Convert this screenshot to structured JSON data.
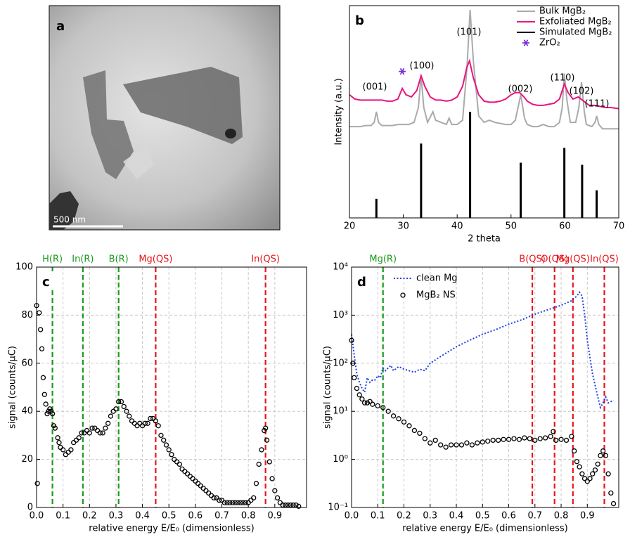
{
  "chart_data": [
    {
      "type": "image",
      "label": "a",
      "scale_label": "500 nm"
    },
    {
      "type": "line",
      "label": "b",
      "xlabel": "2 theta",
      "ylabel": "Intensity (a.u.)",
      "xlim": [
        20,
        70
      ],
      "xticks": [
        20,
        30,
        40,
        50,
        60,
        70
      ],
      "ylim": [
        0,
        100
      ],
      "grid": false,
      "legend": "upper right",
      "annotations": [
        "(001)",
        "(100)",
        "(101)",
        "(002)",
        "(110)",
        "(102)",
        "(111)"
      ],
      "series": [
        {
          "name": "Bulk MgB₂",
          "type": "line",
          "color": "#aaaaaa",
          "x": [
            20,
            21,
            22,
            23,
            24,
            24.6,
            25,
            25.4,
            26,
            27,
            28,
            29,
            30,
            31,
            32,
            32.8,
            33.3,
            33.8,
            34.5,
            35.5,
            36,
            37,
            38,
            38.5,
            39,
            40,
            41,
            41.8,
            42.4,
            43,
            44,
            45,
            46,
            47,
            48,
            49,
            50,
            50.8,
            51.8,
            52.5,
            53,
            54,
            55,
            56,
            57,
            58,
            59,
            59.5,
            59.9,
            60.4,
            61,
            62,
            62.6,
            63.1,
            63.6,
            64,
            65,
            65.6,
            65.9,
            66.3,
            67,
            68,
            69,
            70
          ],
          "values": [
            43,
            43,
            43,
            43.5,
            43.5,
            45,
            50,
            45,
            43.5,
            43.5,
            43.5,
            44,
            44,
            44,
            45,
            52,
            67,
            52,
            45,
            50,
            46,
            45,
            44,
            47,
            44,
            44,
            46,
            70,
            98,
            74,
            48,
            45,
            46,
            45,
            44.5,
            44,
            44,
            46,
            58,
            47,
            44,
            43,
            43,
            44,
            43,
            43,
            45,
            52,
            68,
            55,
            45,
            45,
            52,
            64,
            50,
            44,
            43,
            45,
            48,
            44,
            42,
            42,
            42,
            42
          ]
        },
        {
          "name": "Exfoliated MgB₂",
          "type": "line",
          "color": "#e8157f",
          "x": [
            20,
            21,
            22,
            23,
            24,
            25,
            26,
            27,
            28,
            29,
            29.8,
            30.5,
            31.5,
            32.5,
            33.3,
            34,
            35,
            36,
            37,
            38,
            39,
            40,
            41,
            41.8,
            42.3,
            43,
            44,
            45,
            46,
            47,
            48,
            49,
            50,
            50.8,
            51.6,
            52.4,
            53,
            54,
            55,
            56,
            57,
            58,
            59,
            59.9,
            60.6,
            61.5,
            62.5,
            63.5,
            64.5,
            65.5,
            66.5,
            67.5,
            68.5,
            70
          ],
          "values": [
            58,
            56,
            55.5,
            55.5,
            55.5,
            55.5,
            55.5,
            55,
            55,
            56,
            61,
            58,
            57,
            60,
            67,
            62,
            57,
            55.5,
            55.5,
            55,
            55.5,
            57,
            62,
            71,
            74,
            66,
            58,
            55,
            54.5,
            54.5,
            55,
            56,
            58,
            59,
            59,
            57,
            55,
            53.5,
            53,
            53,
            53.5,
            54,
            56,
            63,
            59,
            56,
            57,
            55,
            53,
            53,
            52.5,
            52,
            52,
            51.5
          ]
        },
        {
          "name": "Simulated MgB₂",
          "type": "stick",
          "color": "#000000",
          "x": [
            25.0,
            33.3,
            42.4,
            51.8,
            59.9,
            63.2,
            65.9
          ],
          "values": [
            9,
            35,
            50,
            26,
            33,
            25,
            13
          ]
        },
        {
          "name": "ZrO₂",
          "type": "marker",
          "color": "#7b2fd6",
          "x": [
            29.8
          ],
          "values": [
            69
          ]
        }
      ]
    },
    {
      "type": "scatter",
      "label": "c",
      "xlabel": "relative energy E/E₀ (dimensionless)",
      "ylabel": "signal (counts/μC)",
      "xlim": [
        0,
        1.02
      ],
      "xticks": [
        {
          "value": 0,
          "label": "0.0"
        },
        0.1,
        0.2,
        0.3,
        0.4,
        0.5,
        0.6,
        0.7,
        0.8,
        0.9
      ],
      "ylim": [
        0,
        100
      ],
      "yticks": [
        0,
        20,
        40,
        60,
        80,
        100
      ],
      "grid": true,
      "vlines": [
        {
          "label": "H(R)",
          "x": 0.06,
          "color": "#1a9a1a"
        },
        {
          "label": "In(R)",
          "x": 0.175,
          "color": "#1a9a1a"
        },
        {
          "label": "B(R)",
          "x": 0.31,
          "color": "#1a9a1a"
        },
        {
          "label": "Mg(QS)",
          "x": 0.45,
          "color": "#e8141c"
        },
        {
          "label": "In(QS)",
          "x": 0.865,
          "color": "#e8141c"
        }
      ],
      "series": [
        {
          "type": "scatter",
          "color": "#000000",
          "x": [
            0,
            0.003,
            0.01,
            0.015,
            0.02,
            0.025,
            0.03,
            0.035,
            0.04,
            0.045,
            0.05,
            0.055,
            0.06,
            0.065,
            0.07,
            0.08,
            0.085,
            0.09,
            0.1,
            0.11,
            0.12,
            0.13,
            0.14,
            0.15,
            0.16,
            0.17,
            0.18,
            0.19,
            0.2,
            0.21,
            0.22,
            0.23,
            0.24,
            0.25,
            0.26,
            0.27,
            0.28,
            0.29,
            0.3,
            0.31,
            0.32,
            0.33,
            0.34,
            0.35,
            0.36,
            0.37,
            0.38,
            0.39,
            0.4,
            0.41,
            0.42,
            0.43,
            0.44,
            0.45,
            0.46,
            0.47,
            0.48,
            0.49,
            0.5,
            0.51,
            0.52,
            0.53,
            0.54,
            0.55,
            0.56,
            0.57,
            0.58,
            0.59,
            0.6,
            0.61,
            0.62,
            0.63,
            0.64,
            0.65,
            0.66,
            0.67,
            0.68,
            0.69,
            0.7,
            0.71,
            0.72,
            0.73,
            0.74,
            0.75,
            0.76,
            0.77,
            0.78,
            0.79,
            0.8,
            0.81,
            0.82,
            0.83,
            0.84,
            0.85,
            0.86,
            0.865,
            0.87,
            0.88,
            0.89,
            0.9,
            0.91,
            0.92,
            0.93,
            0.94,
            0.95,
            0.96,
            0.97,
            0.98,
            0.99
          ],
          "values": [
            84,
            10,
            81,
            74,
            66,
            54,
            47,
            43,
            39,
            40,
            41,
            40,
            39,
            34,
            33,
            29,
            27,
            25,
            24,
            22,
            23,
            24,
            27,
            28,
            29,
            31,
            31,
            32,
            31,
            33,
            33,
            32,
            31,
            31,
            33,
            35,
            38,
            40,
            41,
            44,
            44,
            42,
            40,
            38,
            36,
            35,
            34,
            35,
            34,
            35,
            35,
            37,
            37,
            36,
            34,
            30,
            28,
            26,
            24,
            22,
            20,
            19,
            18,
            16,
            15,
            14,
            13,
            12,
            11,
            10,
            9,
            8,
            7,
            6,
            5,
            4,
            4,
            3,
            3,
            2,
            2,
            2,
            2,
            2,
            2,
            2,
            2,
            2,
            2,
            3,
            4,
            10,
            18,
            24,
            32,
            33,
            28,
            19,
            12,
            7,
            4,
            2,
            1,
            1,
            1,
            1,
            1,
            1,
            0.5
          ]
        }
      ]
    },
    {
      "type": "scatter",
      "label": "d",
      "xlabel": "relative energy E/E₀ (dimensionless)",
      "ylabel": "signal (counts/μC)",
      "xlim": [
        0,
        1.02
      ],
      "xticks": [
        {
          "value": 0,
          "label": "0.0"
        },
        0.1,
        0.2,
        0.3,
        0.4,
        0.5,
        0.6,
        0.7,
        0.8,
        0.9
      ],
      "log_y": true,
      "ylim": [
        0.1,
        10000
      ],
      "yticks": [
        {
          "value": 0.1,
          "label": "10⁻¹"
        },
        {
          "value": 1,
          "label": "10⁰"
        },
        {
          "value": 10,
          "label": "10¹"
        },
        {
          "value": 100,
          "label": "10²"
        },
        {
          "value": 1000,
          "label": "10³"
        },
        {
          "value": 10000,
          "label": "10⁴"
        }
      ],
      "grid": true,
      "legend": "upper left",
      "vlines": [
        {
          "label": "Mg(R)",
          "x": 0.12,
          "color": "#1a9a1a"
        },
        {
          "label": "B(QS)",
          "x": 0.69,
          "color": "#e8141c"
        },
        {
          "label": "O(QS)",
          "x": 0.775,
          "color": "#e8141c"
        },
        {
          "label": "Mg(QS)",
          "x": 0.845,
          "color": "#e8141c"
        },
        {
          "label": "In(QS)",
          "x": 0.965,
          "color": "#e8141c"
        }
      ],
      "series": [
        {
          "name": "clean Mg",
          "type": "line",
          "linestyle": "dotted",
          "color": "#1f3fe0",
          "x": [
            0,
            0.01,
            0.02,
            0.03,
            0.04,
            0.05,
            0.06,
            0.07,
            0.08,
            0.09,
            0.1,
            0.11,
            0.12,
            0.13,
            0.14,
            0.15,
            0.16,
            0.18,
            0.2,
            0.22,
            0.24,
            0.26,
            0.28,
            0.3,
            0.35,
            0.4,
            0.45,
            0.5,
            0.55,
            0.6,
            0.65,
            0.7,
            0.75,
            0.8,
            0.84,
            0.86,
            0.87,
            0.88,
            0.89,
            0.9,
            0.92,
            0.94,
            0.95,
            0.96,
            0.97,
            0.98,
            1.0
          ],
          "values": [
            400,
            150,
            60,
            40,
            30,
            25,
            50,
            40,
            45,
            45,
            55,
            50,
            80,
            70,
            80,
            90,
            70,
            85,
            75,
            70,
            65,
            75,
            70,
            100,
            150,
            220,
            300,
            400,
            500,
            650,
            800,
            1050,
            1300,
            1600,
            2000,
            2500,
            3000,
            2500,
            1000,
            300,
            60,
            20,
            12,
            15,
            20,
            15,
            17
          ]
        },
        {
          "name": "MgB₂ NS",
          "type": "scatter",
          "color": "#000000",
          "x": [
            0,
            0.005,
            0.01,
            0.02,
            0.03,
            0.04,
            0.05,
            0.06,
            0.07,
            0.08,
            0.1,
            0.12,
            0.14,
            0.16,
            0.18,
            0.2,
            0.22,
            0.24,
            0.26,
            0.28,
            0.3,
            0.32,
            0.34,
            0.36,
            0.38,
            0.4,
            0.42,
            0.44,
            0.46,
            0.48,
            0.5,
            0.52,
            0.54,
            0.56,
            0.58,
            0.6,
            0.62,
            0.64,
            0.66,
            0.68,
            0.7,
            0.72,
            0.74,
            0.76,
            0.77,
            0.78,
            0.8,
            0.82,
            0.84,
            0.85,
            0.86,
            0.87,
            0.88,
            0.89,
            0.9,
            0.91,
            0.92,
            0.93,
            0.94,
            0.95,
            0.96,
            0.97,
            0.98,
            0.99,
            1.0
          ],
          "values": [
            300,
            100,
            50,
            30,
            22,
            18,
            15,
            15,
            16,
            14,
            13,
            12,
            10,
            8,
            7,
            6,
            5,
            4,
            3.5,
            2.7,
            2.2,
            2.5,
            2,
            1.8,
            2,
            2,
            2,
            2.2,
            2,
            2.2,
            2.3,
            2.4,
            2.5,
            2.5,
            2.6,
            2.6,
            2.7,
            2.6,
            2.8,
            2.7,
            2.5,
            2.7,
            2.8,
            3,
            3.8,
            2.5,
            2.6,
            2.5,
            3,
            1.5,
            0.9,
            0.7,
            0.5,
            0.4,
            0.35,
            0.4,
            0.5,
            0.6,
            0.8,
            1.2,
            1.5,
            1.2,
            0.5,
            0.2,
            0.12
          ]
        }
      ]
    }
  ]
}
